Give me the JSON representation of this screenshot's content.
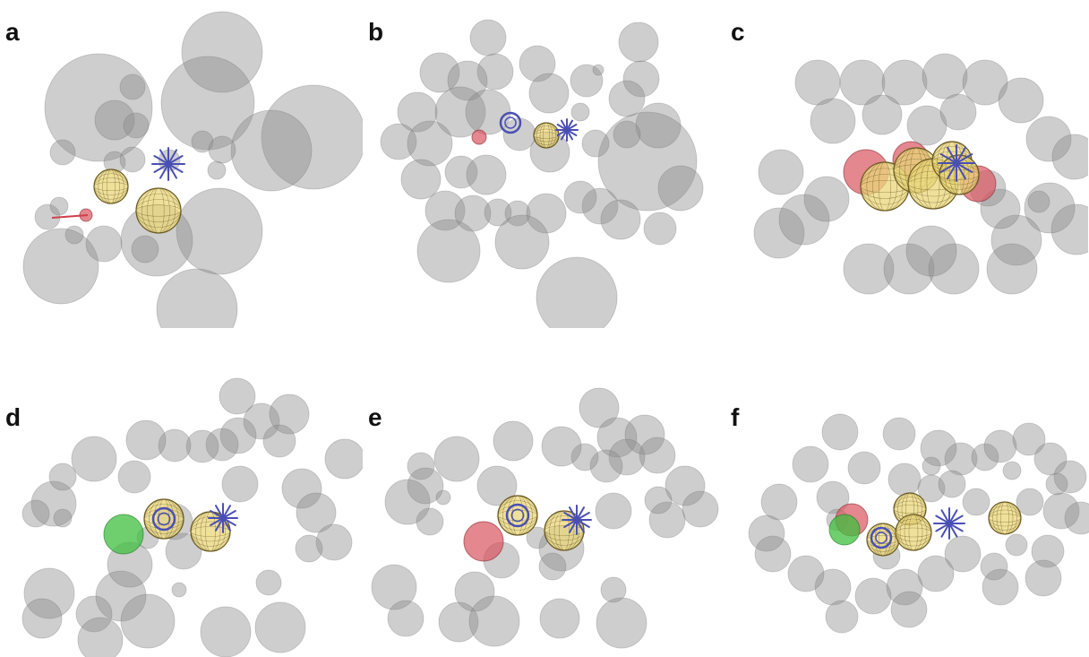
{
  "colors": {
    "grey_sphere": "#8a8a8a",
    "yellow_sphere": "#e9d77a",
    "yellow_wire": "#6b5a22",
    "red_sphere": "#d9545e",
    "green_sphere": "#3fbf3f",
    "blue_marker": "#4a4fb5"
  },
  "icons": {
    "star": "blue-star-marker-icon",
    "ring": "blue-ring-marker-icon"
  },
  "panels": [
    {
      "label": "a",
      "grey": [
        [
          110,
          120,
          60
        ],
        [
          248,
          58,
          45
        ],
        [
          350,
          153,
          58
        ],
        [
          232,
          115,
          52
        ],
        [
          303,
          168,
          45
        ],
        [
          245,
          258,
          48
        ],
        [
          175,
          268,
          40
        ],
        [
          68,
          297,
          42
        ],
        [
          220,
          345,
          45
        ],
        [
          128,
          134,
          22
        ],
        [
          148,
          97,
          14
        ],
        [
          152,
          140,
          14
        ],
        [
          70,
          170,
          14
        ],
        [
          128,
          181,
          12
        ],
        [
          148,
          178,
          14
        ],
        [
          53,
          242,
          14
        ],
        [
          66,
          230,
          10
        ],
        [
          83,
          262,
          10
        ],
        [
          116,
          272,
          20
        ],
        [
          162,
          278,
          15
        ],
        [
          226,
          158,
          12
        ],
        [
          248,
          167,
          15
        ],
        [
          242,
          190,
          10
        ],
        [
          189,
          179,
          12
        ]
      ],
      "yellow": [
        [
          124,
          208,
          19
        ],
        [
          177,
          235,
          25
        ]
      ],
      "red": [
        [
          96,
          240,
          7
        ]
      ],
      "star": [
        188,
        183,
        18
      ],
      "red_line": [
        [
          58,
          243
        ],
        [
          98,
          240
        ]
      ]
    },
    {
      "label": "b",
      "grey": [
        [
          545,
          42,
          20
        ],
        [
          713,
          47,
          22
        ],
        [
          553,
          80,
          20
        ],
        [
          600,
          71,
          20
        ],
        [
          491,
          81,
          22
        ],
        [
          522,
          90,
          22
        ],
        [
          613,
          104,
          22
        ],
        [
          655,
          90,
          18
        ],
        [
          716,
          88,
          20
        ],
        [
          466,
          125,
          22
        ],
        [
          514,
          125,
          28
        ],
        [
          545,
          125,
          25
        ],
        [
          445,
          158,
          20
        ],
        [
          480,
          160,
          25
        ],
        [
          515,
          192,
          18
        ],
        [
          543,
          195,
          22
        ],
        [
          470,
          200,
          22
        ],
        [
          497,
          235,
          22
        ],
        [
          528,
          238,
          20
        ],
        [
          556,
          237,
          15
        ],
        [
          578,
          238,
          14
        ],
        [
          610,
          238,
          22
        ],
        [
          501,
          280,
          35
        ],
        [
          583,
          270,
          30
        ],
        [
          644,
          332,
          45
        ],
        [
          670,
          230,
          20
        ],
        [
          723,
          180,
          55
        ],
        [
          735,
          140,
          25
        ],
        [
          760,
          210,
          25
        ],
        [
          693,
          245,
          22
        ],
        [
          648,
          220,
          18
        ],
        [
          700,
          110,
          20
        ],
        [
          614,
          170,
          22
        ],
        [
          665,
          160,
          15
        ],
        [
          700,
          150,
          15
        ],
        [
          648,
          125,
          10
        ],
        [
          668,
          78,
          6
        ],
        [
          737,
          255,
          18
        ],
        [
          580,
          150,
          18
        ]
      ],
      "yellow": [
        [
          610,
          151,
          14
        ]
      ],
      "red": [
        [
          535,
          153,
          8
        ]
      ],
      "ring": [
        570,
        137,
        11
      ],
      "star": [
        633,
        145,
        12
      ]
    },
    {
      "label": "c",
      "grey": [
        [
          913,
          92,
          25
        ],
        [
          963,
          92,
          25
        ],
        [
          1010,
          92,
          25
        ],
        [
          1055,
          85,
          25
        ],
        [
          1100,
          92,
          25
        ],
        [
          1140,
          112,
          25
        ],
        [
          1171,
          155,
          25
        ],
        [
          1200,
          175,
          25
        ],
        [
          1202,
          256,
          28
        ],
        [
          1172,
          232,
          28
        ],
        [
          1135,
          268,
          28
        ],
        [
          1117,
          233,
          22
        ],
        [
          1103,
          210,
          20
        ],
        [
          872,
          192,
          25
        ],
        [
          870,
          260,
          28
        ],
        [
          898,
          245,
          28
        ],
        [
          923,
          222,
          25
        ],
        [
          970,
          300,
          28
        ],
        [
          1015,
          300,
          28
        ],
        [
          1065,
          300,
          28
        ],
        [
          1130,
          300,
          28
        ],
        [
          1040,
          280,
          28
        ],
        [
          930,
          135,
          25
        ],
        [
          985,
          128,
          22
        ],
        [
          1035,
          140,
          22
        ],
        [
          1070,
          125,
          20
        ],
        [
          1160,
          225,
          12
        ]
      ],
      "yellow": [
        [
          988,
          208,
          27
        ],
        [
          1023,
          190,
          25
        ],
        [
          1042,
          205,
          28
        ],
        [
          1063,
          180,
          22
        ],
        [
          1071,
          195,
          22
        ]
      ],
      "red": [
        [
          967,
          192,
          25
        ],
        [
          1017,
          178,
          20
        ],
        [
          1092,
          205,
          20
        ]
      ],
      "star": [
        1068,
        182,
        20
      ]
    },
    {
      "label": "d",
      "grey": [
        [
          265,
          442,
          20
        ],
        [
          292,
          470,
          20
        ],
        [
          323,
          462,
          22
        ],
        [
          312,
          492,
          18
        ],
        [
          266,
          486,
          20
        ],
        [
          248,
          496,
          18
        ],
        [
          226,
          498,
          18
        ],
        [
          195,
          497,
          18
        ],
        [
          163,
          491,
          22
        ],
        [
          105,
          512,
          25
        ],
        [
          60,
          562,
          25
        ],
        [
          70,
          532,
          15
        ],
        [
          150,
          532,
          18
        ],
        [
          268,
          540,
          20
        ],
        [
          337,
          545,
          22
        ],
        [
          353,
          572,
          22
        ],
        [
          385,
          512,
          22
        ],
        [
          373,
          605,
          20
        ],
        [
          195,
          582,
          20
        ],
        [
          345,
          612,
          15
        ],
        [
          40,
          573,
          15
        ],
        [
          70,
          578,
          10
        ],
        [
          205,
          615,
          20
        ],
        [
          300,
          650,
          14
        ],
        [
          200,
          658,
          8
        ],
        [
          55,
          662,
          28
        ],
        [
          47,
          690,
          22
        ],
        [
          135,
          665,
          28
        ],
        [
          105,
          685,
          20
        ],
        [
          112,
          714,
          25
        ],
        [
          165,
          693,
          30
        ],
        [
          252,
          705,
          28
        ],
        [
          313,
          700,
          28
        ],
        [
          145,
          630,
          25
        ],
        [
          165,
          600,
          12
        ]
      ],
      "yellow": [
        [
          183,
          579,
          22
        ],
        [
          235,
          593,
          22
        ]
      ],
      "green": [
        [
          138,
          596,
          22
        ]
      ],
      "ring": [
        183,
        579,
        12
      ],
      "star": [
        249,
        578,
        16
      ]
    },
    {
      "label": "e",
      "grey": [
        [
          669,
          455,
          22
        ],
        [
          689,
          488,
          22
        ],
        [
          720,
          485,
          22
        ],
        [
          734,
          508,
          20
        ],
        [
          700,
          510,
          20
        ],
        [
          677,
          520,
          18
        ],
        [
          653,
          510,
          15
        ],
        [
          627,
          498,
          22
        ],
        [
          573,
          492,
          22
        ],
        [
          510,
          512,
          25
        ],
        [
          470,
          520,
          15
        ],
        [
          455,
          560,
          25
        ],
        [
          475,
          542,
          20
        ],
        [
          555,
          542,
          22
        ],
        [
          685,
          570,
          20
        ],
        [
          765,
          542,
          22
        ],
        [
          782,
          568,
          20
        ],
        [
          745,
          580,
          20
        ],
        [
          735,
          558,
          15
        ],
        [
          627,
          612,
          25
        ],
        [
          617,
          632,
          15
        ],
        [
          685,
          658,
          14
        ],
        [
          440,
          655,
          25
        ],
        [
          453,
          690,
          20
        ],
        [
          480,
          582,
          15
        ],
        [
          495,
          555,
          8
        ],
        [
          530,
          660,
          22
        ],
        [
          512,
          694,
          22
        ],
        [
          552,
          693,
          28
        ],
        [
          625,
          690,
          22
        ],
        [
          694,
          695,
          28
        ],
        [
          560,
          625,
          20
        ],
        [
          600,
          600,
          12
        ]
      ],
      "yellow": [
        [
          578,
          575,
          22
        ],
        [
          630,
          592,
          22
        ]
      ],
      "red": [
        [
          540,
          604,
          22
        ]
      ],
      "ring": [
        578,
        575,
        12
      ],
      "star": [
        644,
        580,
        16
      ]
    },
    {
      "label": "f",
      "grey": [
        [
          938,
          482,
          20
        ],
        [
          1004,
          484,
          18
        ],
        [
          1048,
          500,
          20
        ],
        [
          1073,
          512,
          18
        ],
        [
          1100,
          510,
          15
        ],
        [
          1117,
          498,
          18
        ],
        [
          1149,
          490,
          18
        ],
        [
          1173,
          512,
          18
        ],
        [
          1195,
          532,
          18
        ],
        [
          1185,
          570,
          20
        ],
        [
          1207,
          578,
          18
        ],
        [
          1170,
          615,
          18
        ],
        [
          1165,
          645,
          20
        ],
        [
          1117,
          655,
          20
        ],
        [
          1110,
          632,
          15
        ],
        [
          1075,
          618,
          20
        ],
        [
          1045,
          640,
          20
        ],
        [
          1010,
          655,
          20
        ],
        [
          975,
          665,
          20
        ],
        [
          930,
          655,
          20
        ],
        [
          900,
          640,
          20
        ],
        [
          863,
          618,
          20
        ],
        [
          856,
          595,
          20
        ],
        [
          870,
          560,
          20
        ],
        [
          905,
          518,
          20
        ],
        [
          930,
          555,
          18
        ],
        [
          965,
          522,
          18
        ],
        [
          1010,
          535,
          18
        ],
        [
          1040,
          545,
          15
        ],
        [
          1063,
          540,
          15
        ],
        [
          1090,
          560,
          15
        ],
        [
          1150,
          560,
          15
        ],
        [
          1180,
          540,
          12
        ],
        [
          935,
          580,
          12
        ],
        [
          1040,
          520,
          10
        ],
        [
          1130,
          525,
          10
        ],
        [
          990,
          620,
          15
        ],
        [
          1135,
          608,
          12
        ],
        [
          1015,
          680,
          20
        ],
        [
          940,
          688,
          18
        ]
      ],
      "yellow": [
        [
          986,
          602,
          18
        ],
        [
          1016,
          568,
          18
        ],
        [
          1020,
          594,
          20
        ],
        [
          1122,
          578,
          18
        ]
      ],
      "red": [
        [
          951,
          580,
          18
        ]
      ],
      "green": [
        [
          943,
          591,
          17
        ]
      ],
      "ring": [
        984,
        600,
        11
      ],
      "star": [
        1060,
        584,
        17
      ]
    }
  ]
}
